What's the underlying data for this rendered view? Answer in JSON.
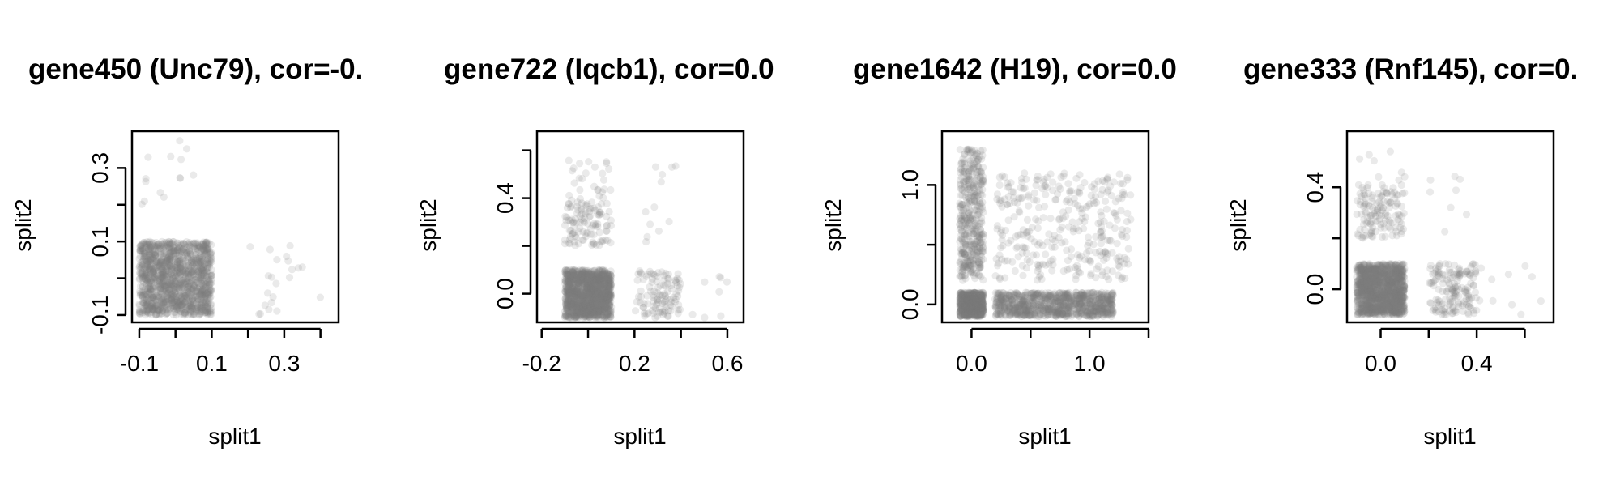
{
  "chart_data": [
    {
      "type": "scatter",
      "title": "gene450 (Unc79), cor=-0.",
      "xlabel": "split1",
      "ylabel": "split2",
      "xlim": [
        -0.12,
        0.45
      ],
      "ylim": [
        -0.12,
        0.4
      ],
      "xticks": [
        -0.1,
        0,
        0.1,
        0.2,
        0.3,
        0.4
      ],
      "xtick_labels": [
        "-0.1",
        "",
        "0.1",
        "",
        "0.3",
        ""
      ],
      "yticks": [
        -0.1,
        0,
        0.1,
        0.2,
        0.3
      ],
      "ytick_labels": [
        "-0.1",
        "",
        "0.1",
        "",
        "0.3"
      ],
      "clusters": [
        {
          "x": [
            -0.1,
            0.1
          ],
          "y": [
            -0.1,
            0.1
          ],
          "n": 1400,
          "seed": 11
        },
        {
          "x": [
            0.2,
            0.4
          ],
          "y": [
            -0.1,
            0.1
          ],
          "n": 22,
          "seed": 12
        },
        {
          "x": [
            -0.1,
            0.1
          ],
          "y": [
            0.2,
            0.4
          ],
          "n": 14,
          "seed": 13
        }
      ],
      "point_color": "#7f7f7f",
      "grid": false
    },
    {
      "type": "scatter",
      "title": "gene722 (Iqcb1), cor=0.0",
      "xlabel": "split1",
      "ylabel": "split2",
      "xlim": [
        -0.22,
        0.67
      ],
      "ylim": [
        -0.12,
        0.68
      ],
      "xticks": [
        -0.2,
        0,
        0.2,
        0.4,
        0.6
      ],
      "xtick_labels": [
        "-0.2",
        "",
        "0.2",
        "",
        "0.6"
      ],
      "yticks": [
        0,
        0.2,
        0.4,
        0.6
      ],
      "ytick_labels": [
        "0.0",
        "",
        "0.4",
        ""
      ],
      "clusters": [
        {
          "x": [
            -0.1,
            0.1
          ],
          "y": [
            -0.1,
            0.1
          ],
          "n": 1300,
          "seed": 21
        },
        {
          "x": [
            -0.1,
            0.1
          ],
          "y": [
            0.2,
            0.4
          ],
          "n": 110,
          "seed": 22
        },
        {
          "x": [
            -0.1,
            0.1
          ],
          "y": [
            0.4,
            0.56
          ],
          "n": 25,
          "seed": 23
        },
        {
          "x": [
            0.2,
            0.4
          ],
          "y": [
            -0.1,
            0.1
          ],
          "n": 110,
          "seed": 24
        },
        {
          "x": [
            0.2,
            0.4
          ],
          "y": [
            0.2,
            0.56
          ],
          "n": 12,
          "seed": 25
        },
        {
          "x": [
            0.4,
            0.6
          ],
          "y": [
            -0.1,
            0.1
          ],
          "n": 8,
          "seed": 26
        }
      ],
      "point_color": "#7f7f7f",
      "grid": false
    },
    {
      "type": "scatter",
      "title": "gene1642 (H19), cor=0.0",
      "xlabel": "split1",
      "ylabel": "split2",
      "xlim": [
        -0.25,
        1.5
      ],
      "ylim": [
        -0.15,
        1.45
      ],
      "xticks": [
        0,
        0.5,
        1.0,
        1.5
      ],
      "xtick_labels": [
        "0.0",
        "",
        "1.0",
        ""
      ],
      "yticks": [
        0,
        0.5,
        1.0
      ],
      "ytick_labels": [
        "0.0",
        "",
        "1.0"
      ],
      "clusters": [
        {
          "x": [
            -0.1,
            0.1
          ],
          "y": [
            -0.1,
            0.1
          ],
          "n": 800,
          "seed": 31
        },
        {
          "x": [
            -0.1,
            0.1
          ],
          "y": [
            0.2,
            1.3
          ],
          "n": 420,
          "seed": 32
        },
        {
          "x": [
            0.2,
            1.2
          ],
          "y": [
            -0.1,
            0.1
          ],
          "n": 900,
          "seed": 33
        },
        {
          "x": [
            0.2,
            1.35
          ],
          "y": [
            0.2,
            1.1
          ],
          "n": 330,
          "seed": 34
        }
      ],
      "point_color": "#7f7f7f",
      "grid": false
    },
    {
      "type": "scatter",
      "title": "gene333 (Rnf145), cor=0.",
      "xlabel": "split1",
      "ylabel": "split2",
      "xlim": [
        -0.14,
        0.72
      ],
      "ylim": [
        -0.13,
        0.62
      ],
      "xticks": [
        0,
        0.2,
        0.4,
        0.6
      ],
      "xtick_labels": [
        "0.0",
        "",
        "0.4",
        ""
      ],
      "yticks": [
        0,
        0.2,
        0.4
      ],
      "ytick_labels": [
        "0.0",
        "",
        "0.4"
      ],
      "clusters": [
        {
          "x": [
            -0.1,
            0.1
          ],
          "y": [
            -0.1,
            0.1
          ],
          "n": 1300,
          "seed": 41
        },
        {
          "x": [
            -0.1,
            0.1
          ],
          "y": [
            0.2,
            0.4
          ],
          "n": 130,
          "seed": 42
        },
        {
          "x": [
            -0.1,
            0.1
          ],
          "y": [
            0.4,
            0.55
          ],
          "n": 12,
          "seed": 43
        },
        {
          "x": [
            0.2,
            0.4
          ],
          "y": [
            -0.1,
            0.1
          ],
          "n": 160,
          "seed": 44
        },
        {
          "x": [
            0.2,
            0.4
          ],
          "y": [
            0.2,
            0.45
          ],
          "n": 8,
          "seed": 45
        },
        {
          "x": [
            0.4,
            0.7
          ],
          "y": [
            -0.1,
            0.1
          ],
          "n": 10,
          "seed": 46
        }
      ],
      "point_color": "#7f7f7f",
      "grid": false
    }
  ]
}
